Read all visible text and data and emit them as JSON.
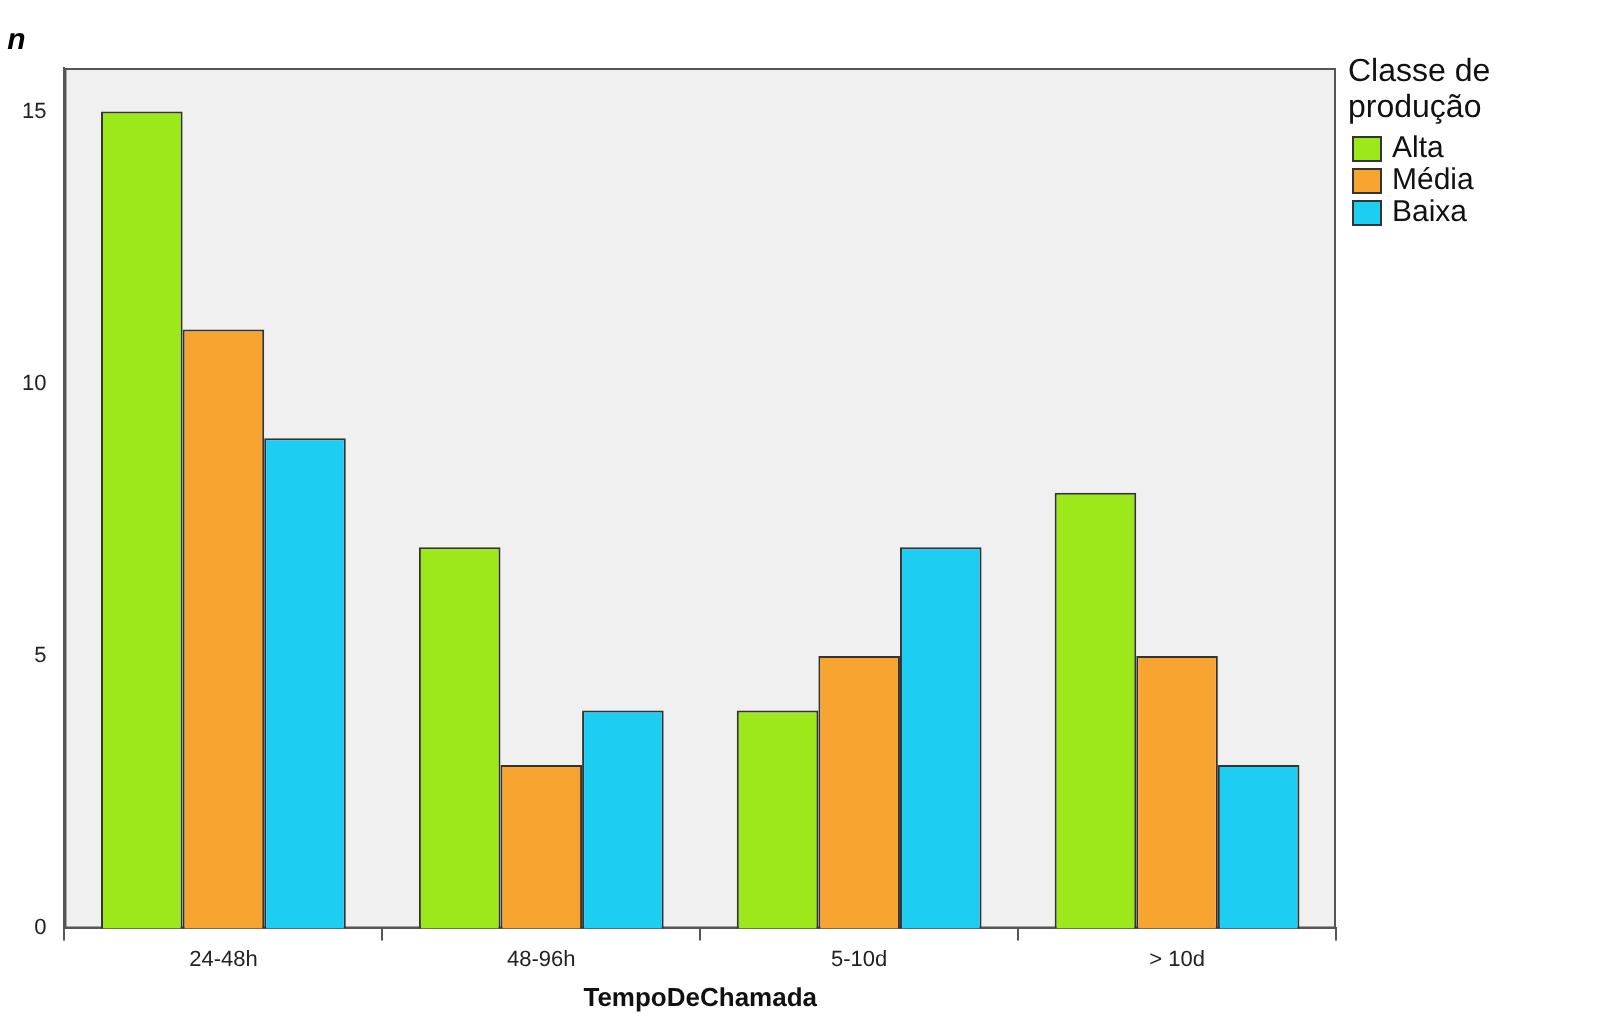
{
  "chart_data": {
    "type": "bar",
    "xlabel": "TempoDeChamada",
    "ylabel": "n",
    "legend_title": "Classe de produção",
    "categories": [
      "24-48h",
      "48-96h",
      "5-10d",
      "> 10d"
    ],
    "series": [
      {
        "name": "Alta",
        "color": "#9ce81a",
        "values": [
          15,
          7,
          4,
          8
        ]
      },
      {
        "name": "Média",
        "color": "#f7a530",
        "values": [
          11,
          3,
          5,
          5
        ]
      },
      {
        "name": "Baixa",
        "color": "#1ecdf2",
        "values": [
          9,
          4,
          7,
          3
        ]
      }
    ],
    "ylim": [
      0,
      15.8
    ],
    "yticks": [
      0,
      5,
      10,
      15
    ],
    "grid": false,
    "legend": "top right"
  }
}
